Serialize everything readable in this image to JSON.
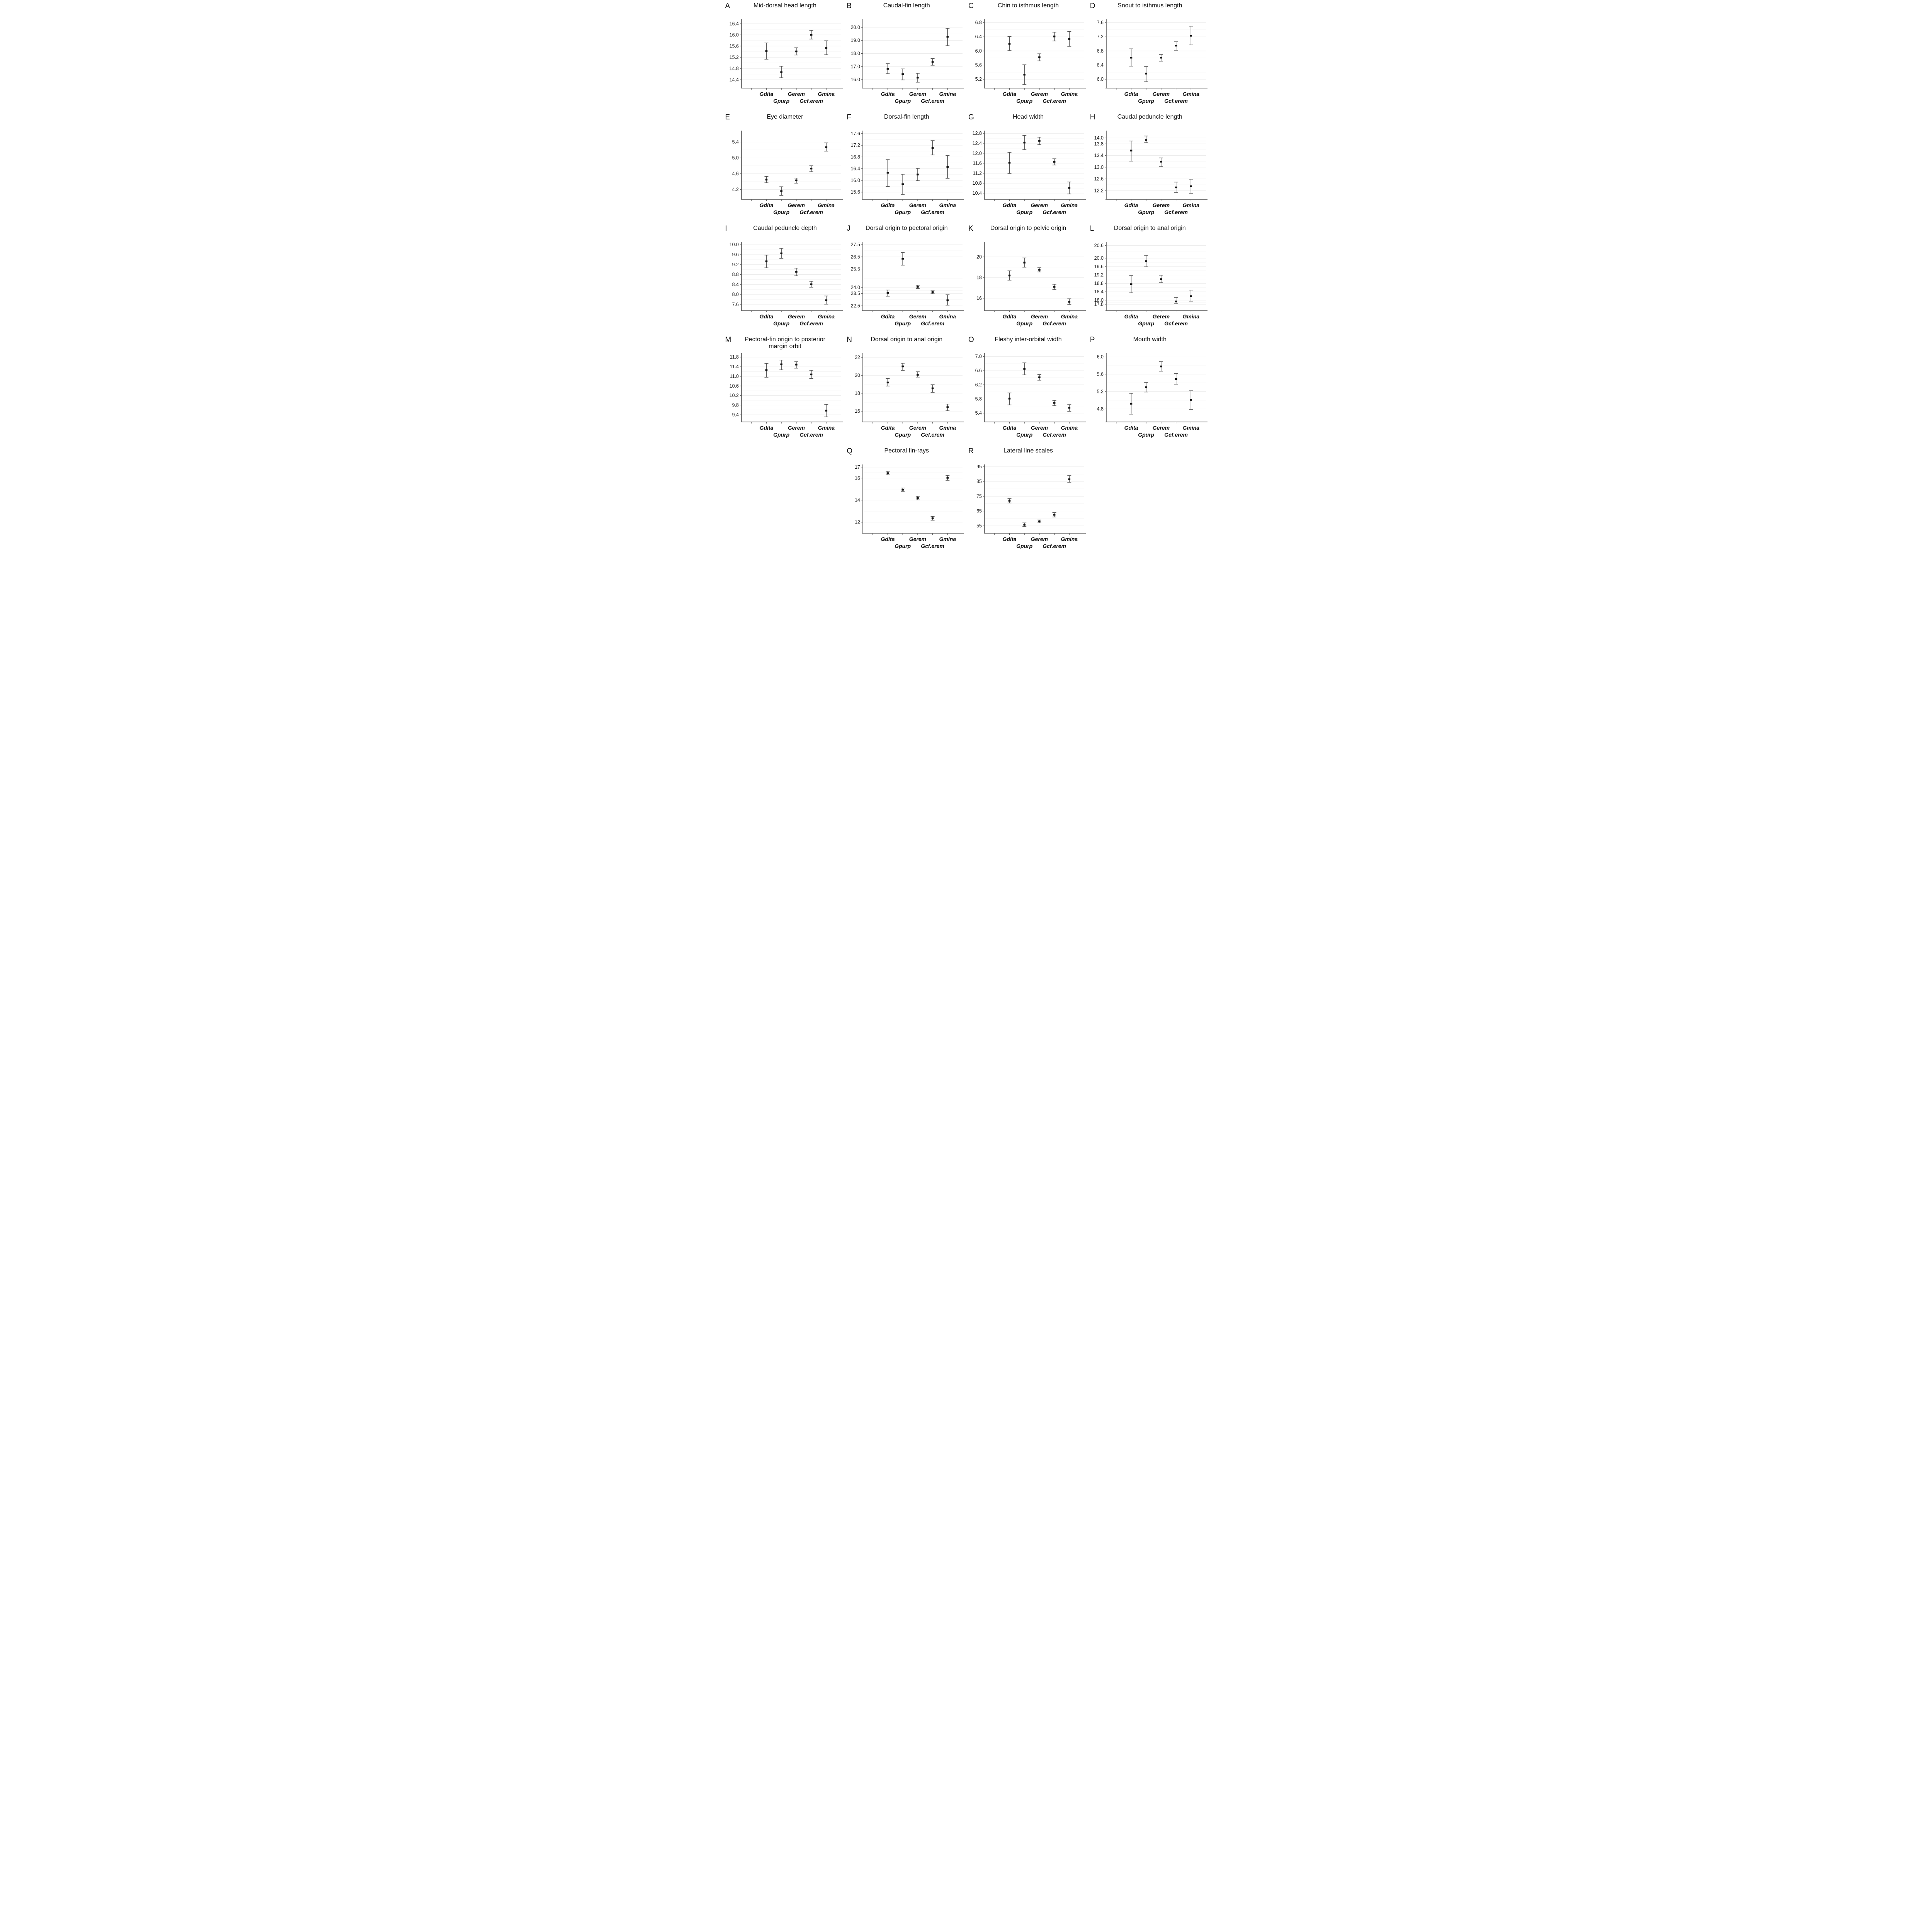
{
  "figure": {
    "background": "#ffffff",
    "text_color": "#111111",
    "marker_color": "#111111",
    "whisker_color": "#4d4d4d",
    "gridline_color": "#ececec",
    "axis_color": "#555555"
  },
  "chart_data": {
    "type": "scatter",
    "subtype": "mean-with-error-bars",
    "grid": "horizontal-light",
    "legend": "none",
    "categories": [
      "Gdita",
      "Gpurp",
      "Gerem",
      "Gcf.erem",
      "Gmina"
    ],
    "x_label_rows": [
      [
        "Gdita",
        "Gerem",
        "Gmina"
      ],
      [
        "Gpurp",
        "Gcf.erem"
      ]
    ],
    "xtick_positions": [
      0.25,
      0.4,
      0.55,
      0.7,
      0.85
    ],
    "layout_rows": [
      [
        "A",
        "B",
        "C",
        "D"
      ],
      [
        "E",
        "F",
        "G",
        "H"
      ],
      [
        "I",
        "J",
        "K",
        "L"
      ],
      [
        "M",
        "N",
        "O",
        "P"
      ],
      [
        null,
        "Q",
        "R",
        null
      ]
    ],
    "panels": [
      {
        "id": "A",
        "title": "Mid-dorsal head length",
        "yticks": [
          "16.4",
          "16.0",
          "15.6",
          "15.2",
          "14.8",
          "14.4"
        ],
        "ylim": [
          14.1,
          16.5
        ],
        "mean": [
          15.42,
          14.67,
          15.41,
          16.0,
          15.53
        ],
        "lower": [
          15.13,
          14.47,
          15.28,
          15.85,
          15.29
        ],
        "upper": [
          15.71,
          14.88,
          15.54,
          16.16,
          15.79
        ]
      },
      {
        "id": "B",
        "title": "Caudal-fin length",
        "yticks": [
          "20.0",
          "19.0",
          "18.0",
          "17.0",
          "16.0"
        ],
        "ylim": [
          15.35,
          20.5
        ],
        "mean": [
          16.82,
          16.42,
          16.15,
          17.35,
          19.28
        ],
        "lower": [
          16.45,
          15.98,
          15.8,
          17.1,
          18.6
        ],
        "upper": [
          17.22,
          16.82,
          16.48,
          17.62,
          19.93
        ]
      },
      {
        "id": "C",
        "title": "Chin to isthmus length",
        "yticks": [
          "6.8",
          "6.4",
          "6.0",
          "5.6",
          "5.2"
        ],
        "ylim": [
          4.95,
          6.85
        ],
        "mean": [
          6.2,
          5.33,
          5.82,
          6.41,
          6.34
        ],
        "lower": [
          6.01,
          5.05,
          5.72,
          6.28,
          6.13
        ],
        "upper": [
          6.41,
          5.61,
          5.92,
          6.53,
          6.55
        ]
      },
      {
        "id": "D",
        "title": "Snout to isthmus length",
        "yticks": [
          "7.6",
          "7.2",
          "6.8",
          "6.4",
          "6.0"
        ],
        "ylim": [
          5.75,
          7.65
        ],
        "mean": [
          6.61,
          6.16,
          6.61,
          6.95,
          7.23
        ],
        "lower": [
          6.37,
          5.93,
          6.51,
          6.82,
          6.97
        ],
        "upper": [
          6.86,
          6.36,
          6.7,
          7.06,
          7.5
        ]
      },
      {
        "id": "E",
        "title": "Eye diameter",
        "yticks": [
          "5.4",
          "5.0",
          "4.6",
          "4.2"
        ],
        "ylim": [
          3.95,
          5.65
        ],
        "mean": [
          4.45,
          4.16,
          4.43,
          4.73,
          5.27
        ],
        "lower": [
          4.37,
          4.05,
          4.36,
          4.65,
          5.17
        ],
        "upper": [
          4.53,
          4.27,
          4.49,
          4.8,
          5.38
        ]
      },
      {
        "id": "F",
        "title": "Dorsal-fin length",
        "yticks": [
          "17.6",
          "17.2",
          "16.8",
          "16.4",
          "16.0",
          "15.6"
        ],
        "ylim": [
          15.35,
          17.65
        ],
        "mean": [
          16.26,
          15.87,
          16.2,
          17.11,
          16.46
        ],
        "lower": [
          15.79,
          15.52,
          15.99,
          16.87,
          16.07
        ],
        "upper": [
          16.71,
          16.21,
          16.41,
          17.36,
          16.85
        ]
      },
      {
        "id": "G",
        "title": "Head width",
        "yticks": [
          "12.8",
          "12.4",
          "12.0",
          "11.6",
          "11.2",
          "10.8",
          "10.4"
        ],
        "ylim": [
          10.15,
          12.85
        ],
        "mean": [
          11.62,
          12.43,
          12.5,
          11.66,
          10.61
        ],
        "lower": [
          11.19,
          12.15,
          12.35,
          11.53,
          10.37
        ],
        "upper": [
          12.04,
          12.72,
          12.65,
          11.78,
          10.85
        ]
      },
      {
        "id": "H",
        "title": "Caudal peduncle length",
        "yticks": [
          "14.0",
          "13.8",
          "13.4",
          "13.0",
          "12.6",
          "12.2"
        ],
        "ylim": [
          11.9,
          14.2
        ],
        "mean": [
          13.57,
          13.93,
          13.19,
          12.31,
          12.35
        ],
        "lower": [
          13.21,
          13.84,
          13.02,
          12.13,
          12.11
        ],
        "upper": [
          13.9,
          14.07,
          13.32,
          12.49,
          12.59
        ]
      },
      {
        "id": "I",
        "title": "Caudal peduncle depth",
        "yticks": [
          "10.0",
          "9.6",
          "9.2",
          "8.8",
          "8.4",
          "8.0",
          "7.6"
        ],
        "ylim": [
          7.35,
          10.05
        ],
        "mean": [
          9.33,
          9.65,
          8.91,
          8.41,
          7.77
        ],
        "lower": [
          9.07,
          9.45,
          8.75,
          8.29,
          7.61
        ],
        "upper": [
          9.58,
          9.85,
          9.06,
          8.53,
          7.94
        ]
      },
      {
        "id": "J",
        "title": "Dorsal origin to pectoral origin",
        "yticks": [
          "27.5",
          "26.5",
          "25.5",
          "24.0",
          "23.5",
          "22.5"
        ],
        "ylim": [
          22.1,
          27.6
        ],
        "mean": [
          23.55,
          26.35,
          24.05,
          23.61,
          22.95
        ],
        "lower": [
          23.28,
          25.82,
          23.92,
          23.49,
          22.55
        ],
        "upper": [
          23.79,
          26.85,
          24.18,
          23.73,
          23.4
        ]
      },
      {
        "id": "K",
        "title": "Dorsal origin to pelvic origin",
        "yticks": [
          "20",
          "18",
          "16"
        ],
        "ylim": [
          14.8,
          21.3
        ],
        "mean": [
          18.2,
          19.45,
          18.75,
          17.1,
          15.65
        ],
        "lower": [
          17.75,
          19.0,
          18.55,
          16.85,
          15.4
        ],
        "upper": [
          18.65,
          19.9,
          18.95,
          17.35,
          15.95
        ]
      },
      {
        "id": "L",
        "title": "Dorsal origin to anal origin",
        "yticks": [
          "20.6",
          "20.0",
          "19.6",
          "19.2",
          "18.8",
          "18.4",
          "18.0",
          "17.8"
        ],
        "ylim": [
          17.5,
          20.7
        ],
        "mean": [
          18.76,
          19.86,
          19.0,
          17.94,
          18.19
        ],
        "lower": [
          18.35,
          19.59,
          18.83,
          17.83,
          17.95
        ],
        "upper": [
          19.17,
          20.13,
          19.19,
          18.13,
          18.48
        ]
      },
      {
        "id": "M",
        "title": "Pectoral-fin origin to posterior margin orbit",
        "yticks": [
          "11.8",
          "11.4",
          "11.0",
          "10.6",
          "10.2",
          "9.8",
          "9.4"
        ],
        "ylim": [
          9.1,
          11.9
        ],
        "mean": [
          11.26,
          11.5,
          11.49,
          11.08,
          9.57
        ],
        "lower": [
          10.96,
          11.27,
          11.34,
          10.91,
          9.31
        ],
        "upper": [
          11.54,
          11.68,
          11.61,
          11.25,
          9.83
        ]
      },
      {
        "id": "N",
        "title": "Dorsal origin to anal origin",
        "yticks": [
          "22",
          "20",
          "18",
          "16"
        ],
        "ylim": [
          14.8,
          22.3
        ],
        "mean": [
          19.2,
          21.0,
          20.05,
          18.55,
          16.45
        ],
        "lower": [
          18.8,
          20.55,
          19.8,
          18.1,
          16.05
        ],
        "upper": [
          19.65,
          21.35,
          20.4,
          18.95,
          16.8
        ]
      },
      {
        "id": "O",
        "title": "Fleshy inter-orbital width",
        "yticks": [
          "7.0",
          "6.6",
          "6.2",
          "5.8",
          "5.4"
        ],
        "ylim": [
          5.15,
          7.05
        ],
        "mean": [
          5.81,
          6.65,
          6.41,
          5.69,
          5.55
        ],
        "lower": [
          5.63,
          6.48,
          6.33,
          5.61,
          5.45
        ],
        "upper": [
          5.97,
          6.82,
          6.49,
          5.76,
          5.64
        ]
      },
      {
        "id": "P",
        "title": "Mouth width",
        "yticks": [
          "6.0",
          "5.6",
          "5.2",
          "4.8"
        ],
        "ylim": [
          4.5,
          6.05
        ],
        "mean": [
          4.92,
          5.3,
          5.78,
          5.49,
          5.01
        ],
        "lower": [
          4.68,
          5.19,
          5.67,
          5.37,
          4.79
        ],
        "upper": [
          5.16,
          5.41,
          5.89,
          5.62,
          5.22
        ]
      },
      {
        "id": "Q",
        "title": "Pectoral fin-rays",
        "yticks": [
          "17",
          "16",
          "14",
          "12"
        ],
        "ylim": [
          11.0,
          17.1
        ],
        "mean": [
          16.45,
          14.95,
          14.2,
          12.35,
          16.03
        ],
        "lower": [
          16.3,
          14.8,
          14.03,
          12.18,
          15.8
        ],
        "upper": [
          16.62,
          15.1,
          14.35,
          12.52,
          16.25
        ]
      },
      {
        "id": "R",
        "title": "Lateral line scales",
        "yticks": [
          "95",
          "85",
          "75",
          "65",
          "55"
        ],
        "ylim": [
          50,
          95.5
        ],
        "mean": [
          72.0,
          55.8,
          58.0,
          62.5,
          86.5
        ],
        "lower": [
          70.5,
          54.5,
          57.0,
          61.0,
          84.5
        ],
        "upper": [
          73.5,
          57.0,
          59.0,
          64.0,
          89.0
        ]
      }
    ]
  }
}
